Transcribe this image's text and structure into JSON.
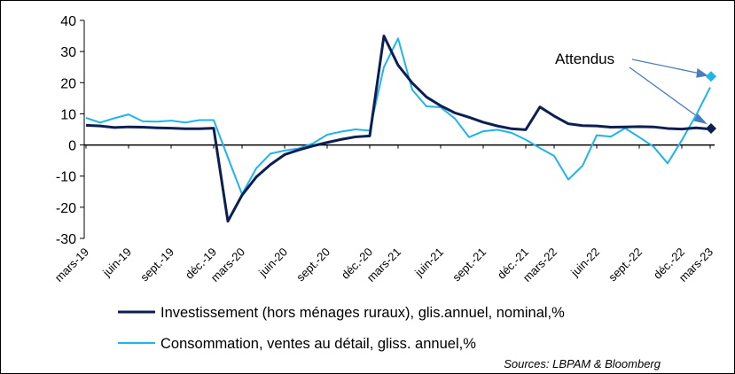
{
  "chart_data": {
    "type": "line",
    "categories": [
      "mars-19",
      null,
      null,
      "juin-19",
      null,
      null,
      "sept.-19",
      null,
      null,
      "déc.-19",
      null,
      "mars-20",
      null,
      null,
      "juin-20",
      null,
      null,
      "sept.-20",
      null,
      null,
      "déc.-20",
      null,
      "mars-21",
      null,
      null,
      "juin-21",
      null,
      null,
      "sept.-21",
      null,
      null,
      "déc.-21",
      null,
      "mars-22",
      null,
      null,
      "juin-22",
      null,
      null,
      "sept.-22",
      null,
      null,
      "déc.-22",
      null,
      "mars-23"
    ],
    "series": [
      {
        "name": "Investissement (hors ménages ruraux), glis.annuel, nominal,%",
        "color": "#0c1e52",
        "values": [
          6.3,
          6.1,
          5.6,
          5.8,
          5.7,
          5.5,
          5.4,
          5.2,
          5.2,
          5.4,
          -24.5,
          -16.1,
          -10.3,
          -6.3,
          -3.1,
          -1.6,
          -0.3,
          0.8,
          1.8,
          2.6,
          2.9,
          35.0,
          25.6,
          19.9,
          15.4,
          12.6,
          10.3,
          8.9,
          7.3,
          6.1,
          5.2,
          4.9,
          12.2,
          9.3,
          6.8,
          6.2,
          6.1,
          5.7,
          5.8,
          5.9,
          5.8,
          5.3,
          5.1,
          5.5,
          5.1
        ],
        "expected": 5.3
      },
      {
        "name": "Consommation, ventes au détail, gliss. annuel,%",
        "color": "#1eb4ec",
        "values": [
          8.7,
          7.2,
          8.6,
          9.8,
          7.6,
          7.5,
          7.8,
          7.2,
          8.0,
          8.0,
          -4,
          -15.8,
          -7.5,
          -2.8,
          -1.8,
          -1.1,
          0.5,
          3.3,
          4.3,
          5.0,
          4.6,
          25,
          34.2,
          17.7,
          12.4,
          12.1,
          8.5,
          2.5,
          4.4,
          4.9,
          3.9,
          1.7,
          -1,
          -3.5,
          -11.1,
          -6.7,
          3.1,
          2.7,
          5.4,
          2.5,
          -0.5,
          -5.9,
          1.5,
          9.5,
          18.5
        ],
        "expected": 22
      }
    ],
    "annotation": "Attendus",
    "source": "Sources: LBPAM & Bloomberg",
    "ylim": [
      -30,
      40
    ],
    "yticks": [
      -30,
      -20,
      -10,
      0,
      10,
      20,
      30,
      40
    ],
    "grid": false
  }
}
